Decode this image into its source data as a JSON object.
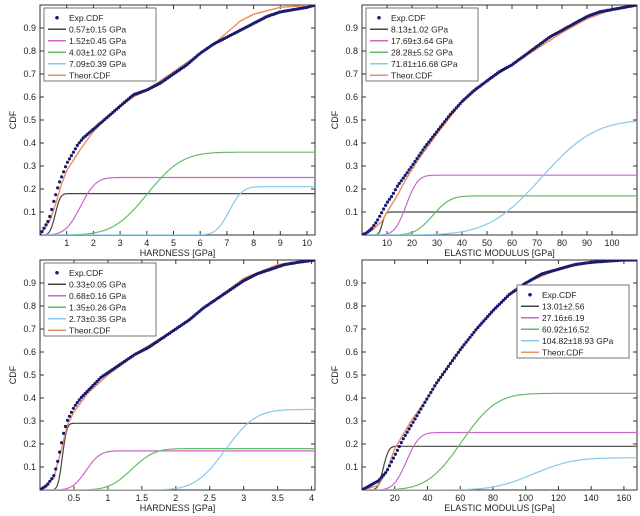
{
  "chart_data": [
    {
      "type": "line",
      "xlabel": "HARDNESS [GPa]",
      "ylabel": "CDF",
      "xlim": [
        0,
        10.3
      ],
      "ylim": [
        0,
        1
      ],
      "xticks": [
        1,
        2,
        3,
        4,
        5,
        6,
        7,
        8,
        9,
        10
      ],
      "xtick_labels": [
        "1",
        "2",
        "3",
        "4",
        "5",
        "6",
        "7",
        "8",
        "9",
        "10"
      ],
      "yticks": [
        0.1,
        0.2,
        0.3,
        0.4,
        0.5,
        0.6,
        0.7,
        0.8,
        0.9
      ],
      "ytick_labels": [
        "0.1",
        "0.2",
        "0.3",
        "0.4",
        "0.5",
        "0.6",
        "0.7",
        "0.8",
        "0.9"
      ],
      "legend_position": "top-left",
      "series": [
        {
          "name": "Exp.CDF",
          "style": "points",
          "color": "#1a1a6e",
          "x": [
            0,
            0.1,
            0.2,
            0.3,
            0.4,
            0.5,
            0.6,
            0.7,
            0.8,
            0.9,
            1.0,
            1.2,
            1.4,
            1.6,
            1.8,
            2.0,
            2.5,
            3.0,
            3.5,
            4.0,
            4.5,
            5.0,
            5.5,
            6.0,
            6.5,
            7.0,
            7.5,
            8.0,
            8.5,
            9.0,
            9.5,
            10.0,
            10.3
          ],
          "y": [
            0,
            0.02,
            0.04,
            0.06,
            0.09,
            0.14,
            0.18,
            0.22,
            0.25,
            0.28,
            0.31,
            0.35,
            0.39,
            0.42,
            0.44,
            0.46,
            0.51,
            0.56,
            0.61,
            0.63,
            0.66,
            0.7,
            0.74,
            0.79,
            0.83,
            0.86,
            0.89,
            0.92,
            0.95,
            0.97,
            0.98,
            0.99,
            1.0
          ]
        },
        {
          "name": "0.57±0.15 GPa",
          "style": "line",
          "color": "#444444",
          "mu": 0.57,
          "sigma": 0.15,
          "w": 0.18
        },
        {
          "name": "1.52±0.45 GPa",
          "style": "line",
          "color": "#cc66cc",
          "mu": 1.52,
          "sigma": 0.45,
          "w": 0.25
        },
        {
          "name": "4.03±1.02 GPa",
          "style": "line",
          "color": "#66bb66",
          "mu": 4.03,
          "sigma": 1.02,
          "w": 0.36
        },
        {
          "name": "7.09±0.39 GPa",
          "style": "line",
          "color": "#88c8e8",
          "mu": 7.09,
          "sigma": 0.39,
          "w": 0.21
        },
        {
          "name": "Theor.CDF",
          "style": "line",
          "color": "#e89060",
          "x": [
            0,
            0.2,
            0.4,
            0.6,
            0.8,
            1.0,
            1.5,
            2.0,
            2.5,
            3.0,
            3.5,
            4.0,
            4.5,
            5.0,
            5.5,
            6.0,
            6.5,
            7.0,
            7.5,
            8.0,
            9.0,
            10.3
          ],
          "y": [
            0,
            0.03,
            0.07,
            0.14,
            0.22,
            0.28,
            0.37,
            0.45,
            0.51,
            0.56,
            0.6,
            0.63,
            0.67,
            0.71,
            0.75,
            0.79,
            0.83,
            0.88,
            0.93,
            0.96,
            0.99,
            1.0
          ]
        }
      ]
    },
    {
      "type": "line",
      "xlabel": "ELASTIC MODULUS [GPa]",
      "ylabel": "CDF",
      "xlim": [
        0,
        110
      ],
      "ylim": [
        0,
        1
      ],
      "xticks": [
        10,
        20,
        30,
        40,
        50,
        60,
        70,
        80,
        90,
        100
      ],
      "xtick_labels": [
        "10",
        "20",
        "30",
        "40",
        "50",
        "60",
        "70",
        "80",
        "90",
        "100"
      ],
      "yticks": [
        0.1,
        0.2,
        0.3,
        0.4,
        0.5,
        0.6,
        0.7,
        0.8,
        0.9
      ],
      "ytick_labels": [
        "0.1",
        "0.2",
        "0.3",
        "0.4",
        "0.5",
        "0.6",
        "0.7",
        "0.8",
        "0.9"
      ],
      "legend_position": "top-left",
      "series": [
        {
          "name": "Exp.CDF",
          "style": "points",
          "color": "#1a1a6e",
          "x": [
            0,
            2,
            4,
            6,
            8,
            10,
            12,
            14,
            16,
            18,
            20,
            25,
            30,
            35,
            40,
            45,
            50,
            55,
            60,
            65,
            70,
            75,
            80,
            85,
            90,
            95,
            100,
            105,
            110
          ],
          "y": [
            0,
            0.01,
            0.03,
            0.06,
            0.1,
            0.14,
            0.17,
            0.21,
            0.24,
            0.27,
            0.3,
            0.38,
            0.45,
            0.52,
            0.58,
            0.63,
            0.67,
            0.71,
            0.74,
            0.78,
            0.82,
            0.86,
            0.89,
            0.92,
            0.95,
            0.97,
            0.98,
            0.99,
            1.0
          ]
        },
        {
          "name": "8.13±1.02 GPa",
          "style": "line",
          "color": "#444444",
          "mu": 8.13,
          "sigma": 1.02,
          "w": 0.1
        },
        {
          "name": "17.69±3.64 GPa",
          "style": "line",
          "color": "#cc66cc",
          "mu": 17.69,
          "sigma": 3.64,
          "w": 0.26
        },
        {
          "name": "28.28±5.52 GPa",
          "style": "line",
          "color": "#66bb66",
          "mu": 28.28,
          "sigma": 5.52,
          "w": 0.17
        },
        {
          "name": "71.81±16.68 GPa",
          "style": "line",
          "color": "#88c8e8",
          "mu": 71.81,
          "sigma": 16.68,
          "w": 0.5
        },
        {
          "name": "Theor.CDF",
          "style": "line",
          "color": "#e89060",
          "x": [
            0,
            4,
            8,
            10,
            14,
            18,
            22,
            26,
            30,
            40,
            50,
            60,
            70,
            80,
            90,
            100,
            110
          ],
          "y": [
            0,
            0.02,
            0.06,
            0.1,
            0.17,
            0.25,
            0.32,
            0.38,
            0.44,
            0.58,
            0.67,
            0.74,
            0.81,
            0.88,
            0.94,
            0.98,
            1.0
          ]
        }
      ]
    },
    {
      "type": "line",
      "xlabel": "HARDNESS [GPa]",
      "ylabel": "CDF",
      "xlim": [
        0,
        4.05
      ],
      "ylim": [
        0,
        1
      ],
      "xticks": [
        0.5,
        1,
        1.5,
        2,
        2.5,
        3,
        3.5,
        4
      ],
      "xtick_labels": [
        "0.5",
        "1",
        "1.5",
        "2",
        "2.5",
        "3",
        "3.5",
        "4"
      ],
      "yticks": [
        0.1,
        0.2,
        0.3,
        0.4,
        0.5,
        0.6,
        0.7,
        0.8,
        0.9
      ],
      "ytick_labels": [
        "0.1",
        "0.2",
        "0.3",
        "0.4",
        "0.5",
        "0.6",
        "0.7",
        "0.8",
        "0.9"
      ],
      "legend_position": "top-left",
      "series": [
        {
          "name": "Exp.CDF",
          "style": "points",
          "color": "#1a1a6e",
          "x": [
            0,
            0.1,
            0.2,
            0.25,
            0.3,
            0.35,
            0.4,
            0.45,
            0.5,
            0.6,
            0.7,
            0.8,
            0.9,
            1.0,
            1.2,
            1.4,
            1.6,
            1.8,
            2.0,
            2.2,
            2.4,
            2.6,
            2.8,
            3.0,
            3.2,
            3.4,
            3.6,
            3.8,
            4.05
          ],
          "y": [
            0,
            0.02,
            0.06,
            0.11,
            0.18,
            0.25,
            0.3,
            0.33,
            0.36,
            0.4,
            0.43,
            0.46,
            0.49,
            0.51,
            0.55,
            0.59,
            0.62,
            0.66,
            0.7,
            0.74,
            0.79,
            0.83,
            0.87,
            0.91,
            0.94,
            0.96,
            0.98,
            0.99,
            1.0
          ]
        },
        {
          "name": "0.33±0.05 GPa",
          "style": "line",
          "color": "#444444",
          "mu": 0.33,
          "sigma": 0.05,
          "w": 0.29
        },
        {
          "name": "0.68±0.16 GPa",
          "style": "line",
          "color": "#cc66cc",
          "mu": 0.68,
          "sigma": 0.16,
          "w": 0.17
        },
        {
          "name": "1.35±0.26 GPa",
          "style": "line",
          "color": "#66bb66",
          "mu": 1.35,
          "sigma": 0.26,
          "w": 0.18
        },
        {
          "name": "2.73±0.35 GPa",
          "style": "line",
          "color": "#88c8e8",
          "mu": 2.73,
          "sigma": 0.35,
          "w": 0.35
        },
        {
          "name": "Theor.CDF",
          "style": "line",
          "color": "#e89060",
          "x": [
            0,
            0.2,
            0.3,
            0.4,
            0.5,
            0.7,
            1.0,
            1.5,
            2.0,
            2.5,
            3.0,
            3.5,
            4.05
          ],
          "y": [
            0,
            0.05,
            0.16,
            0.28,
            0.34,
            0.42,
            0.5,
            0.61,
            0.7,
            0.81,
            0.92,
            0.98,
            1.0
          ]
        }
      ]
    },
    {
      "type": "line",
      "xlabel": "ELASTIC MODULUS [GPa]",
      "ylabel": "CDF",
      "xlim": [
        0,
        168
      ],
      "ylim": [
        0,
        1
      ],
      "xticks": [
        20,
        40,
        60,
        80,
        100,
        120,
        140,
        160
      ],
      "xtick_labels": [
        "20",
        "40",
        "60",
        "80",
        "100",
        "120",
        "140",
        "160"
      ],
      "yticks": [
        0.1,
        0.2,
        0.3,
        0.4,
        0.5,
        0.6,
        0.7,
        0.8,
        0.9
      ],
      "ytick_labels": [
        "0.1",
        "0.2",
        "0.3",
        "0.4",
        "0.5",
        "0.6",
        "0.7",
        "0.8",
        "0.9"
      ],
      "legend_position": "top-right",
      "series": [
        {
          "name": "Exp.CDF",
          "style": "points",
          "color": "#1a1a6e",
          "x": [
            0,
            5,
            10,
            15,
            20,
            25,
            30,
            35,
            40,
            45,
            50,
            55,
            60,
            70,
            80,
            90,
            100,
            110,
            120,
            130,
            140,
            150,
            160,
            168
          ],
          "y": [
            0,
            0.02,
            0.04,
            0.08,
            0.15,
            0.22,
            0.28,
            0.34,
            0.4,
            0.46,
            0.51,
            0.56,
            0.61,
            0.7,
            0.78,
            0.85,
            0.9,
            0.94,
            0.96,
            0.98,
            0.99,
            0.995,
            1.0,
            1.0
          ]
        },
        {
          "name": "13.01±2.56",
          "style": "line",
          "color": "#444444",
          "mu": 13.01,
          "sigma": 2.56,
          "w": 0.19
        },
        {
          "name": "27.16±6.19",
          "style": "line",
          "color": "#cc66cc",
          "mu": 27.16,
          "sigma": 6.19,
          "w": 0.25
        },
        {
          "name": "60.92±16.52",
          "style": "line",
          "color": "#66bb66",
          "mu": 60.92,
          "sigma": 16.52,
          "w": 0.42
        },
        {
          "name": "104.82±18.93 GPa",
          "style": "line",
          "color": "#88c8e8",
          "mu": 104.82,
          "sigma": 18.93,
          "w": 0.14
        },
        {
          "name": "Theor.CDF",
          "style": "line",
          "color": "#e89060",
          "x": [
            0,
            10,
            15,
            20,
            30,
            40,
            50,
            60,
            70,
            80,
            90,
            100,
            120,
            140,
            168
          ],
          "y": [
            0,
            0.02,
            0.08,
            0.18,
            0.3,
            0.4,
            0.51,
            0.61,
            0.7,
            0.78,
            0.85,
            0.9,
            0.96,
            0.99,
            1.0
          ]
        }
      ]
    }
  ]
}
